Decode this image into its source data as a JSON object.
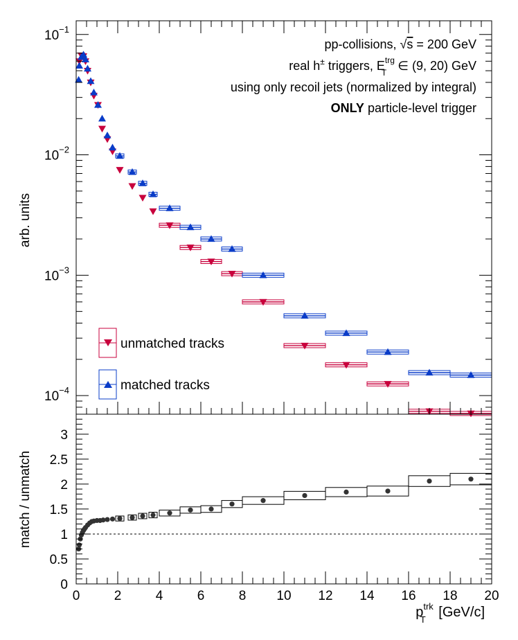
{
  "chart_data": [
    {
      "type": "scatter",
      "ylabel": "arb. units",
      "yscale": "log",
      "ylim": [
        7e-05,
        0.13
      ],
      "xlim": [
        0,
        20
      ],
      "yticks": [
        {
          "value": 0.1,
          "label": "10",
          "exp": "−1"
        },
        {
          "value": 0.01,
          "label": "10",
          "exp": "−2"
        },
        {
          "value": 0.001,
          "label": "10",
          "exp": "−3"
        },
        {
          "value": 0.0001,
          "label": "10",
          "exp": "−4"
        }
      ],
      "annotations": {
        "line1_a": "pp-collisions, ",
        "line1_sqrt": "√",
        "line1_s": "s",
        "line1_b": " = 200 GeV",
        "line2_a": "real h",
        "line2_sup": "±",
        "line2_b": " triggers, E",
        "line2_sub": "T",
        "line2_sup2": "trg",
        "line2_c": " ∈ (9, 20) GeV",
        "line3": "using only recoil jets (normalized by integral)",
        "line4_bold": "ONLY",
        "line4_rest": " particle-level trigger"
      },
      "series": [
        {
          "name": "unmatched tracks",
          "color": "#c8003c",
          "marker": "triangle-down",
          "points": [
            {
              "x": 0.15,
              "y": 0.06
            },
            {
              "x": 0.25,
              "y": 0.067
            },
            {
              "x": 0.35,
              "y": 0.066
            },
            {
              "x": 0.45,
              "y": 0.06
            },
            {
              "x": 0.55,
              "y": 0.05
            },
            {
              "x": 0.7,
              "y": 0.04
            },
            {
              "x": 0.85,
              "y": 0.031
            },
            {
              "x": 1.05,
              "y": 0.026
            },
            {
              "x": 1.25,
              "y": 0.0165
            },
            {
              "x": 1.5,
              "y": 0.0135
            },
            {
              "x": 1.75,
              "y": 0.0107
            },
            {
              "x": 2.1,
              "y": 0.0075
            },
            {
              "x": 2.7,
              "y": 0.0055
            },
            {
              "x": 3.2,
              "y": 0.0044
            },
            {
              "x": 3.7,
              "y": 0.0034
            },
            {
              "x": 4.5,
              "y": 0.0026,
              "x1": 4.0,
              "x2": 5.0
            },
            {
              "x": 5.5,
              "y": 0.0017,
              "x1": 5.0,
              "x2": 6.0
            },
            {
              "x": 6.5,
              "y": 0.0013,
              "x1": 6.0,
              "x2": 7.0
            },
            {
              "x": 7.5,
              "y": 0.00103,
              "x1": 7.0,
              "x2": 8.0
            },
            {
              "x": 9.0,
              "y": 0.0006,
              "x1": 8.0,
              "x2": 10.0
            },
            {
              "x": 11.0,
              "y": 0.00026,
              "x1": 10.0,
              "x2": 12.0
            },
            {
              "x": 13.0,
              "y": 0.00018,
              "x1": 12.0,
              "x2": 14.0
            },
            {
              "x": 15.0,
              "y": 0.000125,
              "x1": 14.0,
              "x2": 16.0
            },
            {
              "x": 17.0,
              "y": 7.4e-05,
              "x1": 16.0,
              "x2": 18.0
            },
            {
              "x": 19.0,
              "y": 7.1e-05,
              "x1": 18.0,
              "x2": 20.0
            }
          ]
        },
        {
          "name": "matched tracks",
          "color": "#0a3cc8",
          "marker": "triangle-up",
          "points": [
            {
              "x": 0.12,
              "y": 0.042
            },
            {
              "x": 0.15,
              "y": 0.055
            },
            {
              "x": 0.25,
              "y": 0.065
            },
            {
              "x": 0.35,
              "y": 0.068
            },
            {
              "x": 0.45,
              "y": 0.062
            },
            {
              "x": 0.55,
              "y": 0.052
            },
            {
              "x": 0.7,
              "y": 0.041
            },
            {
              "x": 0.85,
              "y": 0.033
            },
            {
              "x": 1.05,
              "y": 0.026
            },
            {
              "x": 1.25,
              "y": 0.02
            },
            {
              "x": 1.5,
              "y": 0.0145
            },
            {
              "x": 1.75,
              "y": 0.0115
            },
            {
              "x": 2.1,
              "y": 0.0098,
              "x1": 1.9,
              "x2": 2.3
            },
            {
              "x": 2.7,
              "y": 0.0072,
              "x1": 2.5,
              "x2": 2.9
            },
            {
              "x": 3.2,
              "y": 0.0058,
              "x1": 3.0,
              "x2": 3.4
            },
            {
              "x": 3.7,
              "y": 0.0047,
              "x1": 3.5,
              "x2": 3.9
            },
            {
              "x": 4.5,
              "y": 0.0036,
              "x1": 4.0,
              "x2": 5.0
            },
            {
              "x": 5.5,
              "y": 0.0025,
              "x1": 5.0,
              "x2": 6.0
            },
            {
              "x": 6.5,
              "y": 0.002,
              "x1": 6.0,
              "x2": 7.0
            },
            {
              "x": 7.5,
              "y": 0.00165,
              "x1": 7.0,
              "x2": 8.0
            },
            {
              "x": 9.0,
              "y": 0.001,
              "x1": 8.0,
              "x2": 10.0
            },
            {
              "x": 11.0,
              "y": 0.00046,
              "x1": 10.0,
              "x2": 12.0
            },
            {
              "x": 13.0,
              "y": 0.00033,
              "x1": 12.0,
              "x2": 14.0
            },
            {
              "x": 15.0,
              "y": 0.00023,
              "x1": 14.0,
              "x2": 16.0
            },
            {
              "x": 17.0,
              "y": 0.000155,
              "x1": 16.0,
              "x2": 18.0
            },
            {
              "x": 19.0,
              "y": 0.000148,
              "x1": 18.0,
              "x2": 20.0
            }
          ]
        }
      ],
      "legend": {
        "position": "bottom-left",
        "entries": [
          "unmatched tracks",
          "matched tracks"
        ]
      }
    },
    {
      "type": "scatter",
      "xlabel_main": "p",
      "xlabel_sup": "trk",
      "xlabel_sub": "T",
      "xlabel_unit": " [GeV/c]",
      "ylabel": "match / unmatch",
      "xlim": [
        0,
        20
      ],
      "ylim": [
        0,
        3.4
      ],
      "xticks": [
        0,
        2,
        4,
        6,
        8,
        10,
        12,
        14,
        16,
        18,
        20
      ],
      "yticks": [
        {
          "value": 0,
          "label": "0"
        },
        {
          "value": 0.5,
          "label": "0.5"
        },
        {
          "value": 1,
          "label": "1"
        },
        {
          "value": 1.5,
          "label": "1.5"
        },
        {
          "value": 2,
          "label": "2"
        },
        {
          "value": 2.5,
          "label": "2.5"
        },
        {
          "value": 3,
          "label": "3"
        }
      ],
      "reference_line": 1,
      "series": [
        {
          "name": "ratio",
          "color": "#333333",
          "marker": "circle",
          "points": [
            {
              "x": 0.12,
              "y": 0.7
            },
            {
              "x": 0.15,
              "y": 0.78
            },
            {
              "x": 0.2,
              "y": 0.9
            },
            {
              "x": 0.25,
              "y": 0.98
            },
            {
              "x": 0.3,
              "y": 1.03
            },
            {
              "x": 0.35,
              "y": 1.07
            },
            {
              "x": 0.4,
              "y": 1.1
            },
            {
              "x": 0.45,
              "y": 1.13
            },
            {
              "x": 0.55,
              "y": 1.18
            },
            {
              "x": 0.65,
              "y": 1.22
            },
            {
              "x": 0.75,
              "y": 1.25
            },
            {
              "x": 0.85,
              "y": 1.26
            },
            {
              "x": 1.0,
              "y": 1.27
            },
            {
              "x": 1.15,
              "y": 1.27
            },
            {
              "x": 1.3,
              "y": 1.28
            },
            {
              "x": 1.5,
              "y": 1.29
            },
            {
              "x": 1.75,
              "y": 1.3
            },
            {
              "x": 2.1,
              "y": 1.31,
              "x1": 1.9,
              "x2": 2.3
            },
            {
              "x": 2.7,
              "y": 1.33,
              "x1": 2.5,
              "x2": 2.9
            },
            {
              "x": 3.2,
              "y": 1.36,
              "x1": 3.0,
              "x2": 3.4
            },
            {
              "x": 3.7,
              "y": 1.38,
              "x1": 3.5,
              "x2": 3.9
            },
            {
              "x": 4.5,
              "y": 1.42,
              "x1": 4.0,
              "x2": 5.0
            },
            {
              "x": 5.5,
              "y": 1.48,
              "x1": 5.0,
              "x2": 6.0
            },
            {
              "x": 6.5,
              "y": 1.5,
              "x1": 6.0,
              "x2": 7.0
            },
            {
              "x": 7.5,
              "y": 1.6,
              "x1": 7.0,
              "x2": 8.0
            },
            {
              "x": 9.0,
              "y": 1.67,
              "x1": 8.0,
              "x2": 10.0
            },
            {
              "x": 11.0,
              "y": 1.77,
              "x1": 10.0,
              "x2": 12.0
            },
            {
              "x": 13.0,
              "y": 1.84,
              "x1": 12.0,
              "x2": 14.0
            },
            {
              "x": 15.0,
              "y": 1.86,
              "x1": 14.0,
              "x2": 16.0
            },
            {
              "x": 17.0,
              "y": 2.06,
              "x1": 16.0,
              "x2": 18.0
            },
            {
              "x": 19.0,
              "y": 2.1,
              "x1": 18.0,
              "x2": 20.0
            }
          ]
        }
      ]
    }
  ]
}
